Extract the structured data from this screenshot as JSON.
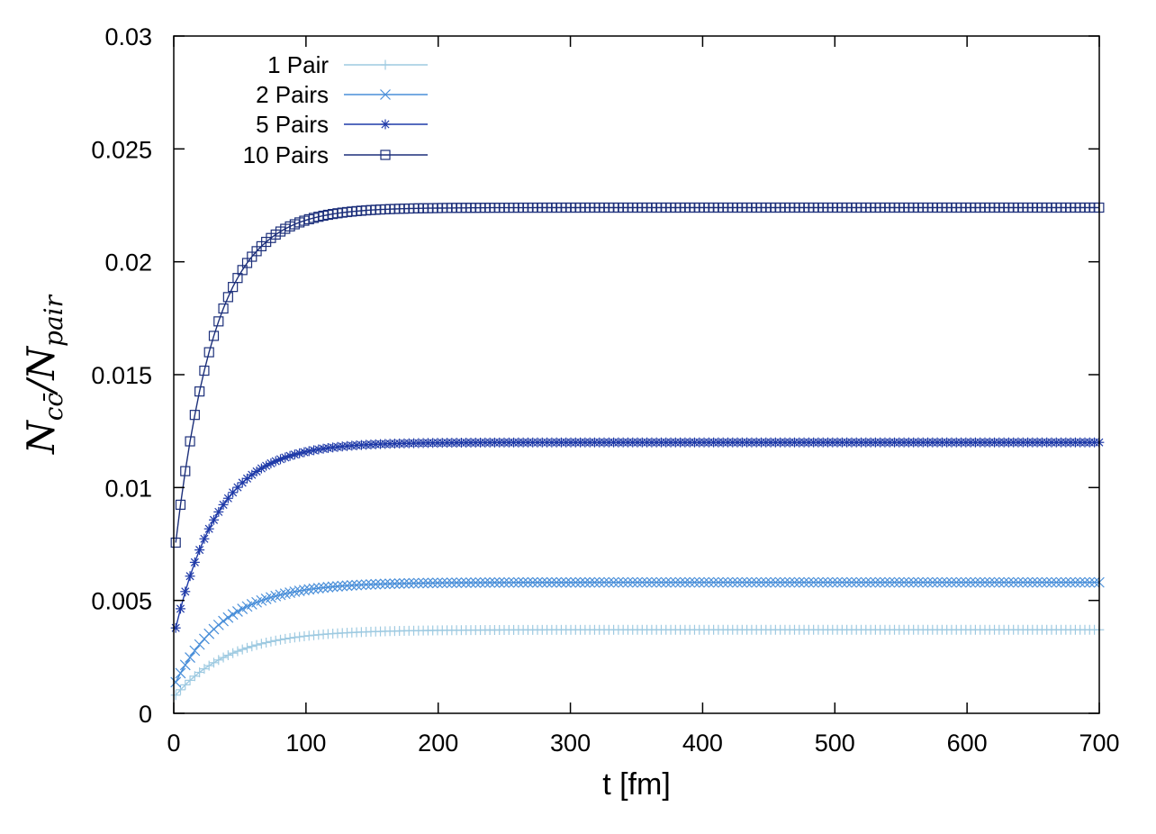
{
  "chart_data": {
    "type": "line",
    "title": "",
    "xlabel": "t [fm]",
    "ylabel": {
      "base": "N",
      "sub": "cc̄",
      "slash": "/",
      "base2": "N",
      "sub2": "pair"
    },
    "xlim": [
      0,
      700
    ],
    "ylim": [
      0,
      0.03
    ],
    "xticks": [
      "0",
      "100",
      "200",
      "300",
      "400",
      "500",
      "600",
      "700"
    ],
    "yticks": [
      "0",
      "0.005",
      "0.01",
      "0.015",
      "0.02",
      "0.025",
      "0.03"
    ],
    "grid": false,
    "legend_position": "top-left",
    "series": [
      {
        "name": "1 Pair",
        "marker": "plus",
        "color": "#9ecae1",
        "plateau": 0.0037,
        "initial": 0.0007,
        "tau": 42
      },
      {
        "name": "2 Pairs",
        "marker": "cross",
        "color": "#4a8fd9",
        "plateau": 0.0058,
        "initial": 0.0012,
        "tau": 38
      },
      {
        "name": "5 Pairs",
        "marker": "star",
        "color": "#1f3aa8",
        "plateau": 0.012,
        "initial": 0.0034,
        "tau": 33
      },
      {
        "name": "10 Pairs",
        "marker": "square",
        "color": "#1c2f7a",
        "plateau": 0.0224,
        "initial": 0.0068,
        "tau": 30
      }
    ],
    "x_step": 3.6
  }
}
